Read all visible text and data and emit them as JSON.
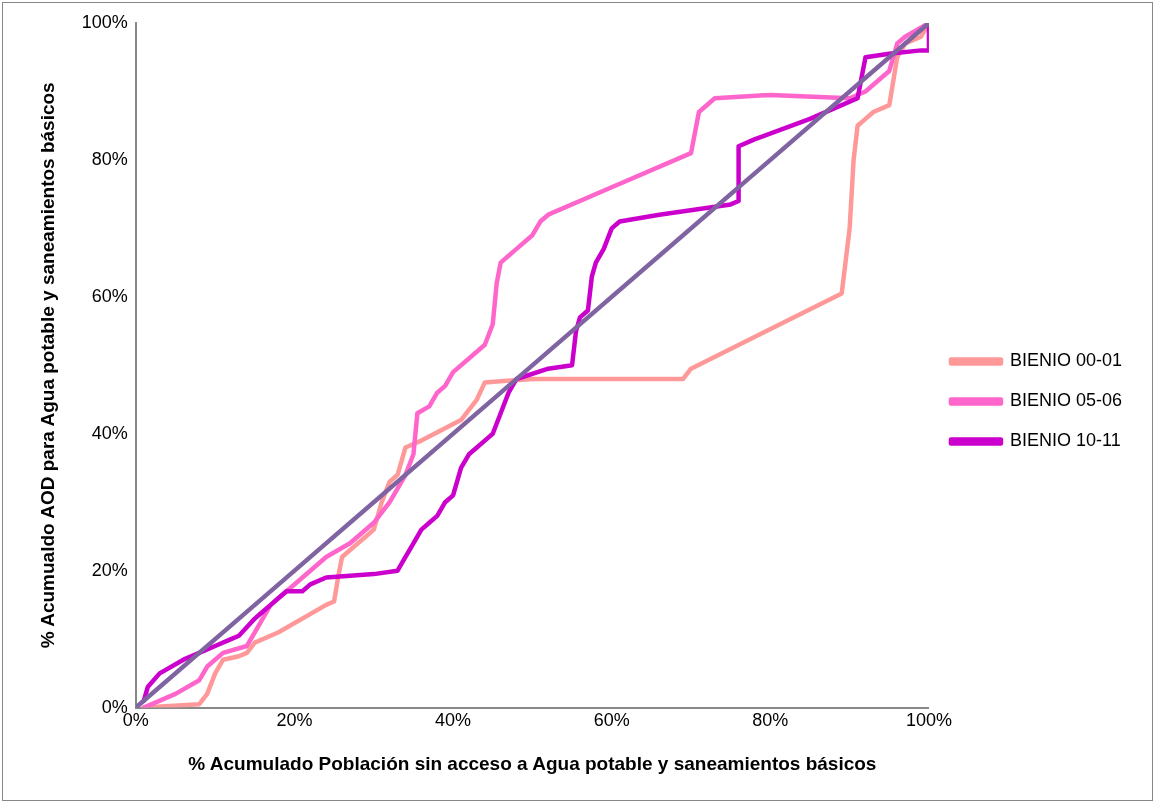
{
  "chart_data": {
    "type": "line",
    "xlabel": "% Acumulado Población sin acceso a Agua potable y saneamientos básicos",
    "ylabel": "% Acumualdo AOD para Agua potable y saneamientos básicos",
    "xlim": [
      0,
      100
    ],
    "ylim": [
      0,
      100
    ],
    "xticks": [
      {
        "value": 0,
        "label": "0%"
      },
      {
        "value": 20,
        "label": "20%"
      },
      {
        "value": 40,
        "label": "40%"
      },
      {
        "value": 60,
        "label": "60%"
      },
      {
        "value": 80,
        "label": "80%"
      },
      {
        "value": 100,
        "label": "100%"
      }
    ],
    "yticks": [
      {
        "value": 0,
        "label": "0%"
      },
      {
        "value": 20,
        "label": "20%"
      },
      {
        "value": 40,
        "label": "40%"
      },
      {
        "value": 60,
        "label": "60%"
      },
      {
        "value": 80,
        "label": "80%"
      },
      {
        "value": 100,
        "label": "100%"
      }
    ],
    "grid": false,
    "legend": "right",
    "marker": "none",
    "line_style": "solid",
    "series": [
      {
        "name": "BIENIO 00-01",
        "color": "#ff9999",
        "x": [
          1,
          8,
          9,
          10,
          11,
          13,
          14,
          15,
          18,
          24,
          25,
          25.5,
          26,
          28,
          29,
          30,
          31,
          32,
          33,
          34,
          36,
          41,
          43,
          44,
          50,
          69,
          70,
          89,
          90,
          90.5,
          91,
          92,
          93,
          95,
          96,
          97,
          99,
          100
        ],
        "values": [
          0,
          0.5,
          2,
          5,
          7,
          7.5,
          8,
          9.5,
          11,
          15,
          15.5,
          19,
          22,
          24,
          25,
          26,
          30,
          33,
          34,
          38,
          39,
          42,
          45,
          47.5,
          48,
          48,
          49.5,
          60.5,
          70,
          80,
          85,
          86,
          87,
          88,
          95,
          97,
          98,
          100
        ]
      },
      {
        "name": "BIENIO 05-06",
        "color": "#ff66cc",
        "x": [
          1,
          5,
          8,
          9,
          11,
          14,
          15,
          17,
          19,
          22,
          24,
          27,
          30,
          32,
          33,
          34,
          35,
          35.5,
          37,
          38,
          39,
          40,
          42,
          44,
          45,
          45.5,
          46,
          48,
          50,
          51,
          52,
          60,
          70,
          70.5,
          71,
          73,
          80,
          90,
          92,
          94,
          95,
          96,
          97,
          100
        ],
        "values": [
          0,
          2,
          4,
          6,
          8,
          9,
          11,
          15,
          17,
          20,
          22,
          24,
          27,
          30,
          32,
          34,
          37,
          43,
          44,
          46,
          47,
          49,
          51,
          53,
          56,
          62,
          65,
          67,
          69,
          71,
          72,
          76,
          81,
          84,
          87,
          89,
          89.5,
          89,
          90,
          92,
          93,
          97,
          98,
          100
        ]
      },
      {
        "name": "BIENIO 10-11",
        "color": "#cc00cc",
        "x": [
          1,
          1.5,
          3,
          6,
          8,
          10,
          12,
          13,
          15,
          16,
          17,
          18,
          19,
          21,
          22,
          24,
          30,
          33,
          34,
          35,
          36,
          37,
          38,
          39,
          40,
          41,
          42,
          43,
          44,
          45,
          46,
          47,
          48,
          52,
          55,
          55.5,
          56,
          57,
          57.5,
          58,
          59,
          60,
          61,
          66,
          75,
          76,
          76,
          78,
          85,
          89,
          91,
          91.5,
          92,
          95,
          99,
          100,
          100
        ],
        "values": [
          1,
          3,
          5,
          7,
          8,
          9,
          10,
          10.5,
          13,
          14,
          15,
          16,
          17,
          17,
          18,
          19,
          19.5,
          20,
          22,
          24,
          26,
          27,
          28,
          30,
          31,
          35,
          37,
          38,
          39,
          40,
          43,
          46,
          48,
          49.5,
          50,
          55,
          57,
          58,
          63,
          65,
          67,
          70,
          71,
          72,
          73.5,
          74,
          82,
          83,
          86,
          88,
          89,
          92,
          95,
          95.5,
          96,
          96,
          100
        ]
      },
      {
        "color": "#8064a2",
        "x": [
          0,
          100
        ],
        "values": [
          0,
          100
        ]
      }
    ]
  }
}
